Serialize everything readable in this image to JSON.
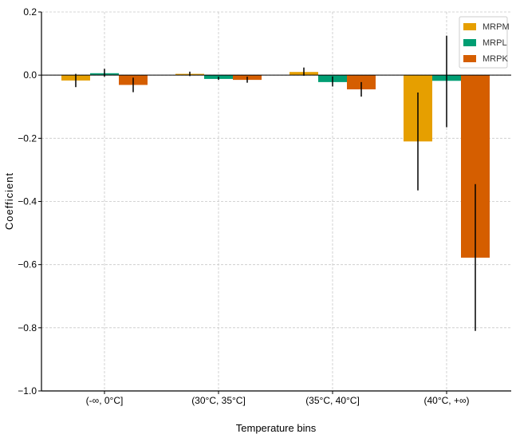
{
  "chart_data": {
    "type": "bar",
    "title": "",
    "xlabel": "Temperature bins",
    "ylabel": "Coefficient",
    "categories": [
      "(-∞, 0°C]",
      "(30°C, 35°C]",
      "(35°C, 40°C]",
      "(40°C, +∞)"
    ],
    "ylim": [
      -1.0,
      0.2
    ],
    "yticks": [
      0.2,
      0.0,
      -0.2,
      -0.4,
      -0.6,
      -0.8,
      -1.0
    ],
    "ytick_labels": [
      "0.2",
      "0.0",
      "−0.2",
      "−0.4",
      "−0.6",
      "−0.8",
      "−1.0"
    ],
    "grid": true,
    "legend_position": "top-right",
    "series": [
      {
        "name": "MRPM",
        "color": "#E69F00",
        "values": [
          -0.017,
          0.004,
          0.01,
          -0.21
        ],
        "err_low": [
          -0.038,
          -0.003,
          -0.002,
          -0.365
        ],
        "err_high": [
          0.004,
          0.011,
          0.024,
          -0.055
        ]
      },
      {
        "name": "MRPL",
        "color": "#009E73",
        "values": [
          0.006,
          -0.012,
          -0.022,
          -0.018
        ],
        "err_low": [
          -0.005,
          -0.015,
          -0.036,
          -0.165
        ],
        "err_high": [
          0.02,
          -0.005,
          -0.004,
          0.125
        ]
      },
      {
        "name": "MRPK",
        "color": "#D55E00",
        "values": [
          -0.031,
          -0.015,
          -0.045,
          -0.578
        ],
        "err_low": [
          -0.054,
          -0.024,
          -0.068,
          -0.81
        ],
        "err_high": [
          -0.008,
          -0.005,
          -0.022,
          -0.345
        ]
      }
    ]
  }
}
